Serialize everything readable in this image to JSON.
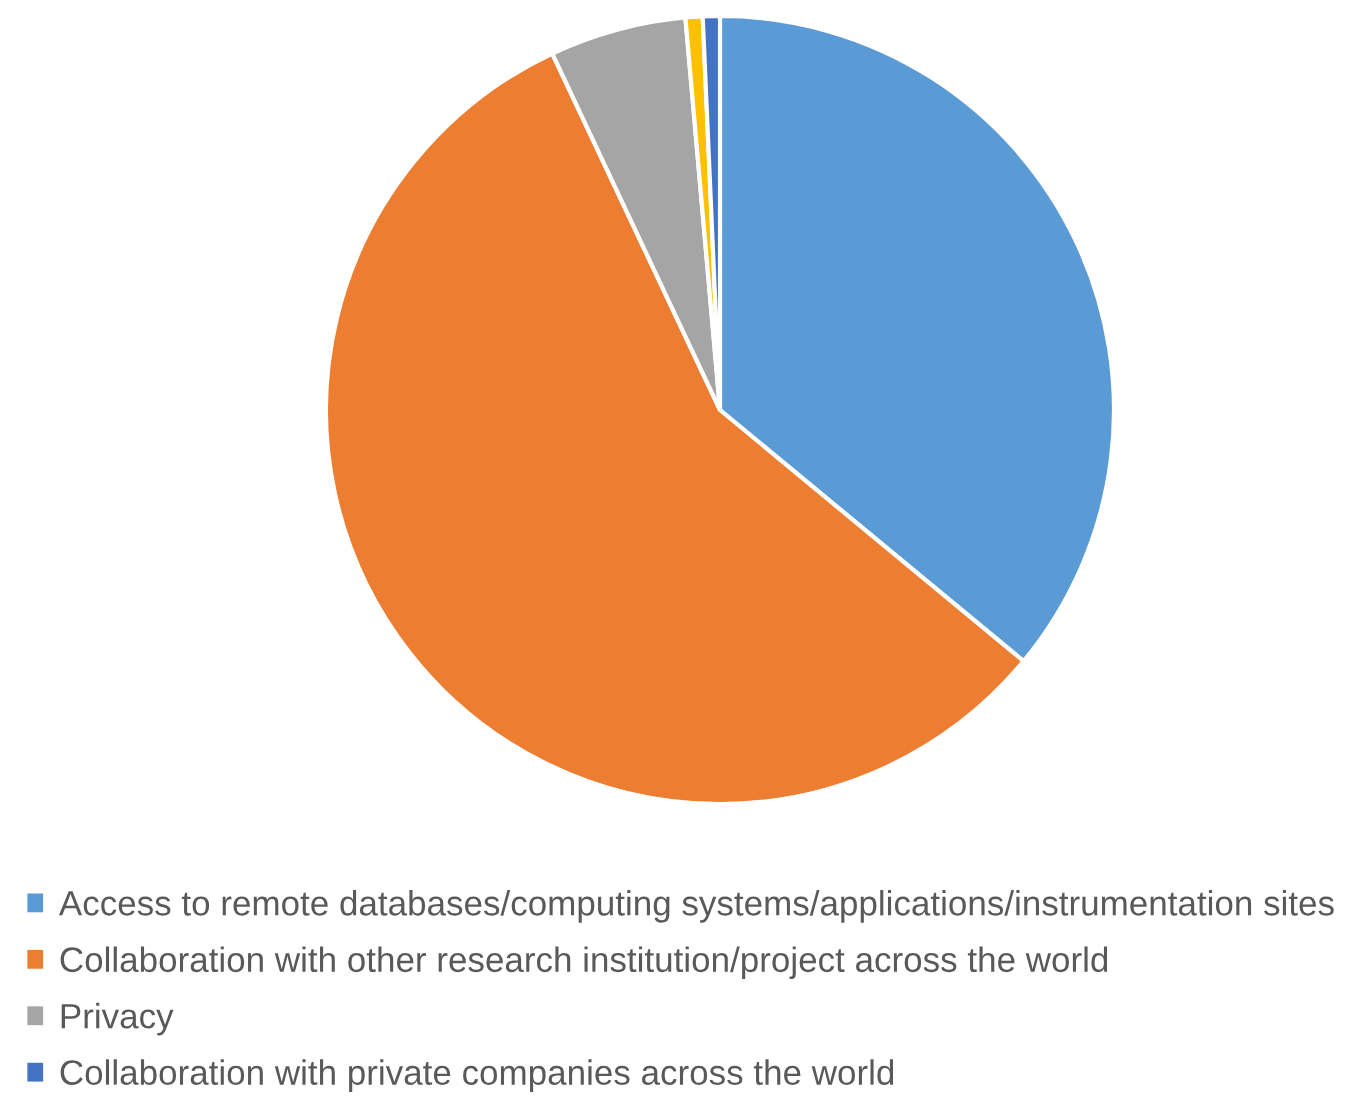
{
  "chart_data": {
    "type": "pie",
    "categories": [
      "Access to remote databases/computing systems/applications/instrumentation sites",
      "Collaboration with other research institution/project across the world",
      "Privacy",
      null,
      "Collaboration with private companies across the world"
    ],
    "values": [
      36,
      57,
      5.6,
      0.7,
      0.7
    ],
    "colors": [
      "#5b9bd5",
      "#ed7d31",
      "#a5a5a5",
      "#ffc000",
      "#4472c4"
    ],
    "legend": "bottom"
  }
}
